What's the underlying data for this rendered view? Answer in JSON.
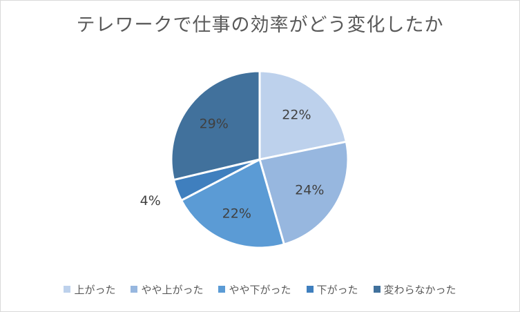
{
  "chart_data": {
    "type": "pie",
    "title": "テレワークで仕事の効率がどう変化したか",
    "categories": [
      "上がった",
      "やや上がった",
      "やや下がった",
      "下がった",
      "変わらなかった"
    ],
    "values": [
      22,
      24,
      22,
      4,
      29
    ],
    "labels": [
      "22%",
      "24%",
      "22%",
      "4%",
      "29%"
    ],
    "colors": [
      "#bdd1ec",
      "#97b7df",
      "#5b9bd5",
      "#3f7fbe",
      "#41719c"
    ],
    "legend_position": "bottom"
  }
}
